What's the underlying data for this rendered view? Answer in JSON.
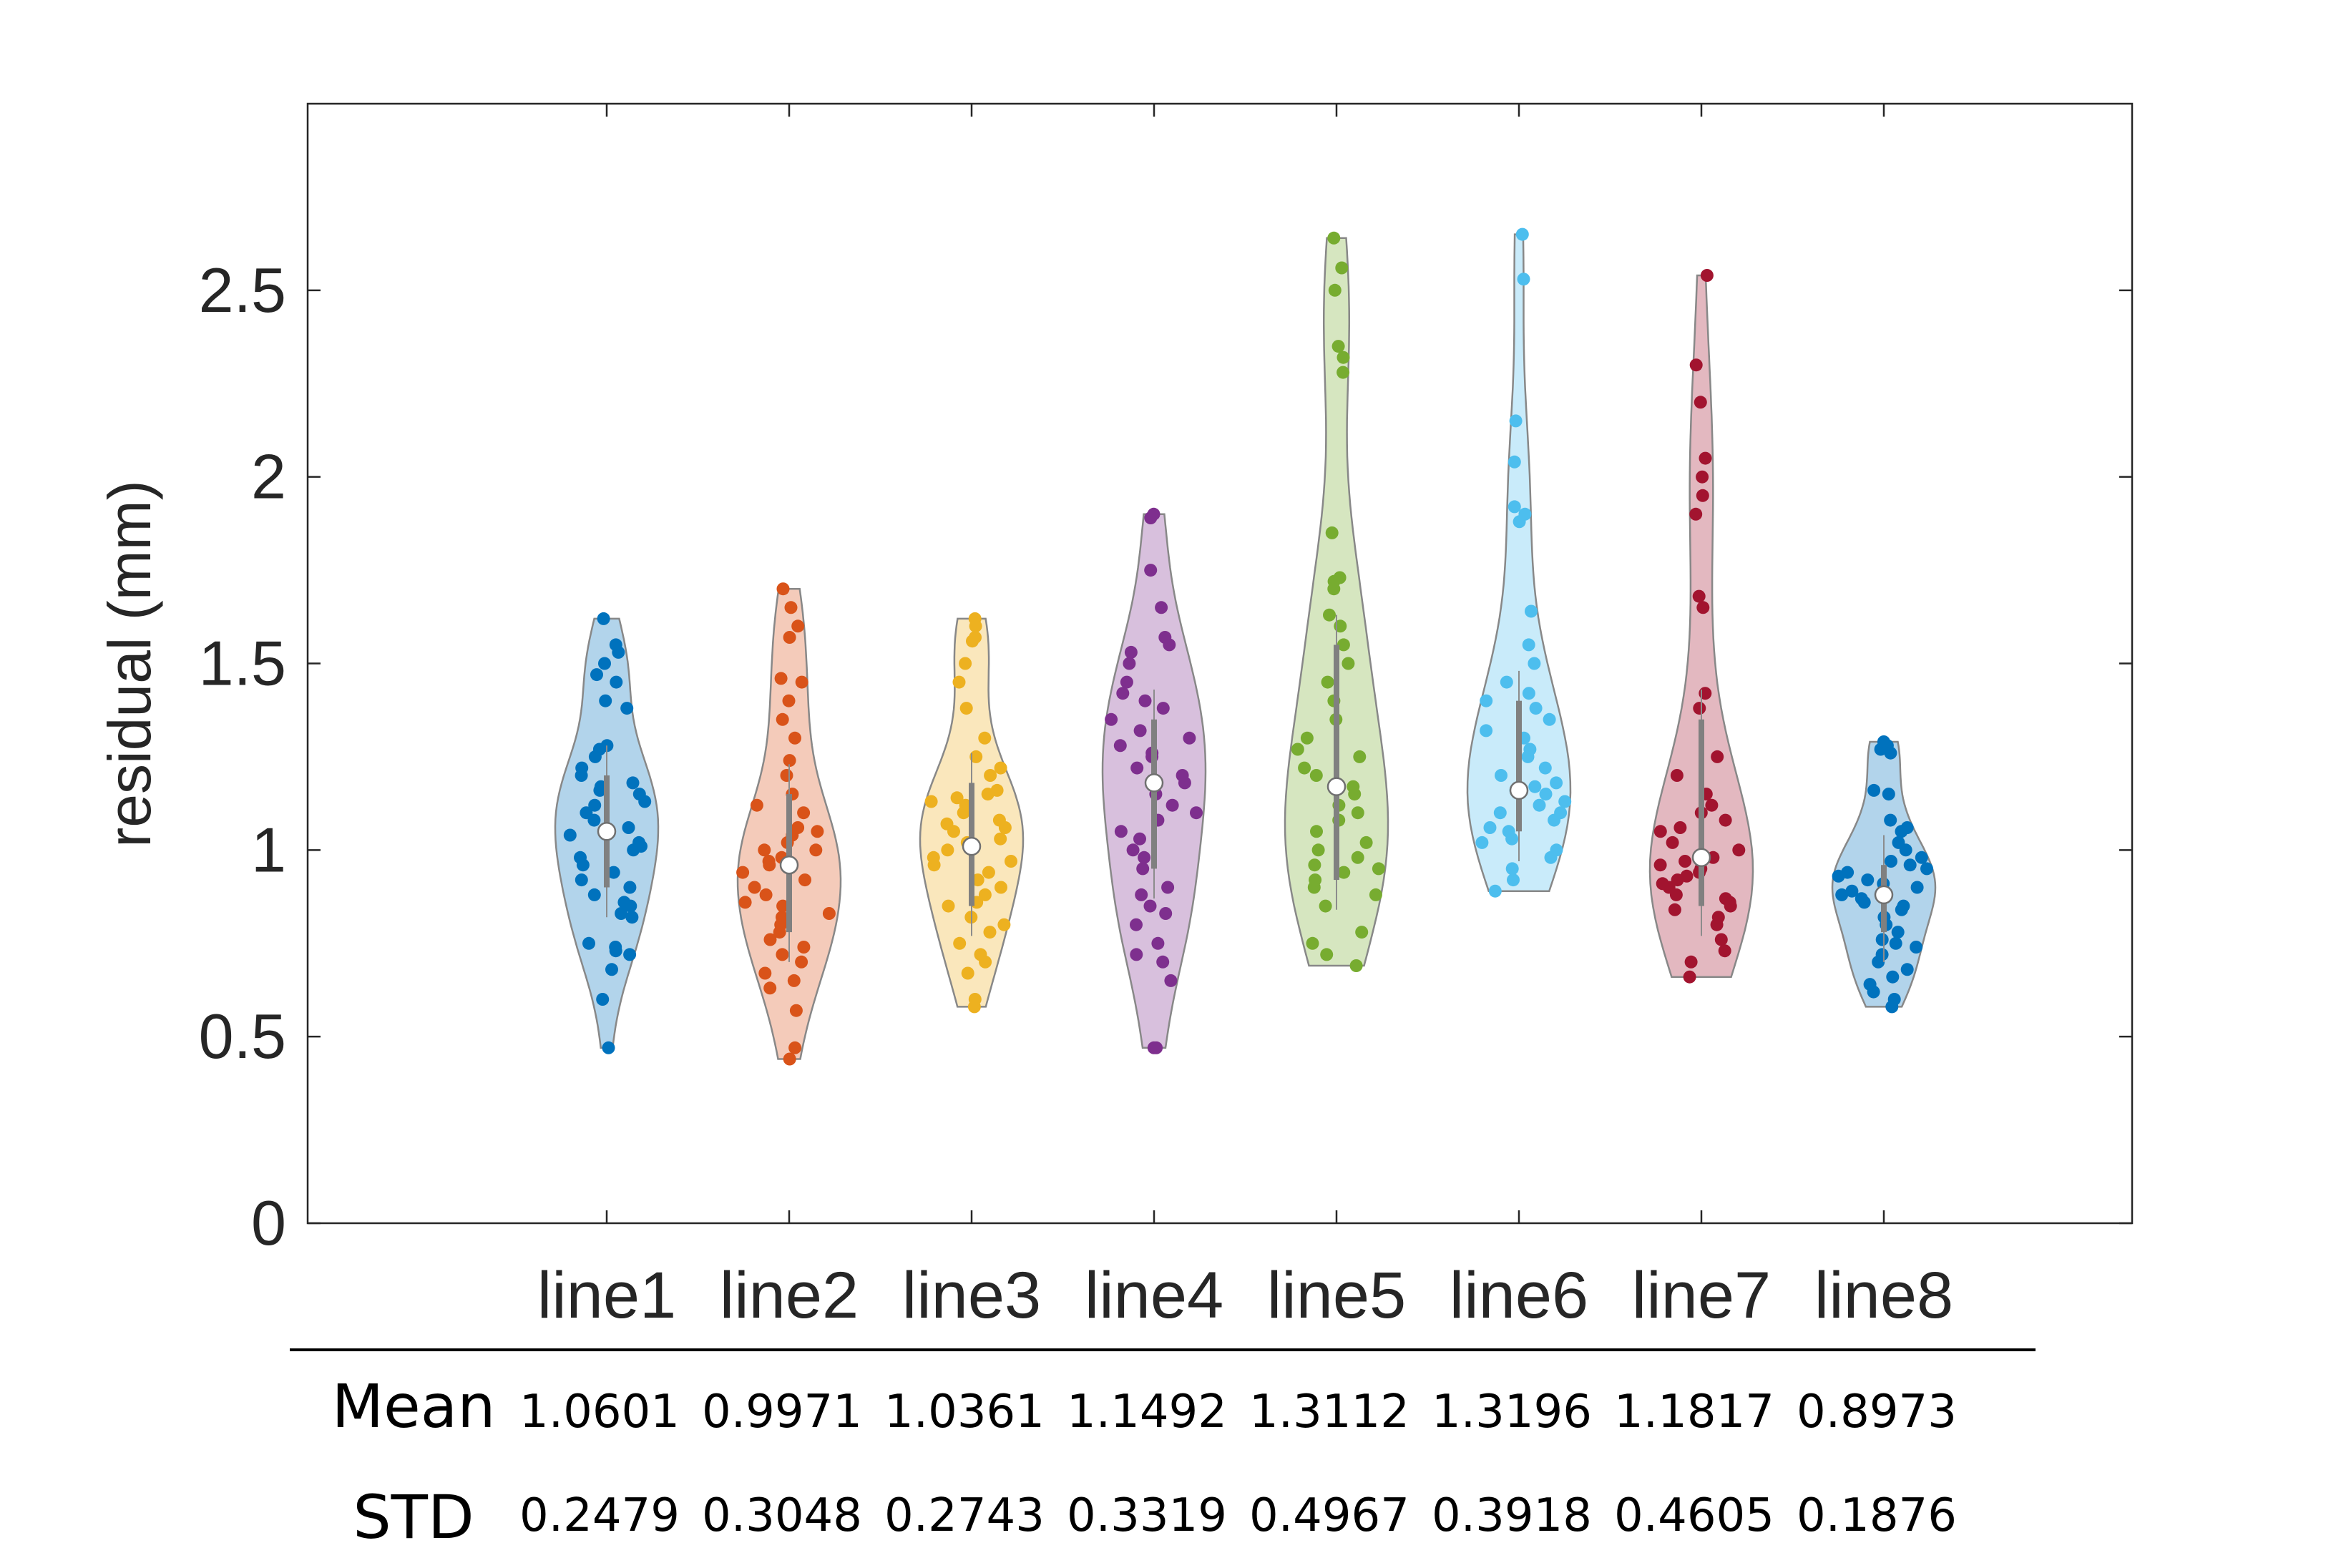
{
  "chart_data": {
    "type": "violin",
    "ylabel": "residual (mm)",
    "ylim": [
      0,
      3
    ],
    "yticks": [
      0,
      0.5,
      1,
      1.5,
      2,
      2.5
    ],
    "ytick_labels": [
      "0",
      "0.5",
      "1",
      "1.5",
      "2",
      "2.5"
    ],
    "categories": [
      "line1",
      "line2",
      "line3",
      "line4",
      "line5",
      "line6",
      "line7",
      "line8"
    ],
    "grid": false,
    "series": [
      {
        "color": "#0072BD",
        "min": 0.47,
        "max": 1.62,
        "median": 1.05,
        "q1": 0.9,
        "q3": 1.2,
        "points": [
          0.47,
          0.6,
          0.68,
          0.72,
          0.73,
          0.74,
          0.75,
          0.82,
          0.83,
          0.85,
          0.86,
          0.88,
          0.9,
          0.92,
          0.94,
          0.96,
          0.98,
          1.0,
          1.01,
          1.02,
          1.04,
          1.05,
          1.06,
          1.08,
          1.1,
          1.12,
          1.13,
          1.15,
          1.16,
          1.17,
          1.18,
          1.2,
          1.22,
          1.25,
          1.27,
          1.28,
          1.38,
          1.4,
          1.45,
          1.47,
          1.5,
          1.53,
          1.55,
          1.62
        ]
      },
      {
        "color": "#D95319",
        "min": 0.44,
        "max": 1.7,
        "median": 0.96,
        "q1": 0.78,
        "q3": 1.15,
        "points": [
          0.44,
          0.47,
          0.57,
          0.63,
          0.65,
          0.67,
          0.7,
          0.72,
          0.74,
          0.76,
          0.78,
          0.8,
          0.82,
          0.83,
          0.85,
          0.86,
          0.88,
          0.9,
          0.92,
          0.94,
          0.96,
          0.97,
          0.98,
          1.0,
          1.0,
          1.02,
          1.04,
          1.05,
          1.06,
          1.1,
          1.12,
          1.15,
          1.2,
          1.24,
          1.3,
          1.35,
          1.4,
          1.45,
          1.46,
          1.57,
          1.6,
          1.65,
          1.7
        ]
      },
      {
        "color": "#EDB120",
        "min": 0.58,
        "max": 1.62,
        "median": 1.01,
        "q1": 0.85,
        "q3": 1.18,
        "points": [
          0.58,
          0.6,
          0.67,
          0.7,
          0.72,
          0.75,
          0.78,
          0.8,
          0.82,
          0.85,
          0.86,
          0.88,
          0.9,
          0.92,
          0.94,
          0.96,
          0.97,
          0.98,
          1.0,
          1.02,
          1.03,
          1.05,
          1.06,
          1.07,
          1.08,
          1.1,
          1.12,
          1.13,
          1.14,
          1.15,
          1.16,
          1.2,
          1.22,
          1.25,
          1.3,
          1.38,
          1.45,
          1.5,
          1.56,
          1.57,
          1.6,
          1.62
        ]
      },
      {
        "color": "#7E2F8E",
        "min": 0.47,
        "max": 1.9,
        "median": 1.18,
        "q1": 0.95,
        "q3": 1.35,
        "points": [
          0.47,
          0.47,
          0.65,
          0.7,
          0.72,
          0.75,
          0.8,
          0.83,
          0.85,
          0.88,
          0.9,
          0.95,
          0.98,
          1.0,
          1.03,
          1.05,
          1.08,
          1.1,
          1.12,
          1.15,
          1.18,
          1.2,
          1.22,
          1.25,
          1.26,
          1.28,
          1.3,
          1.32,
          1.35,
          1.38,
          1.4,
          1.42,
          1.45,
          1.5,
          1.53,
          1.55,
          1.57,
          1.65,
          1.75,
          1.89,
          1.9
        ]
      },
      {
        "color": "#77AC30",
        "min": 0.69,
        "max": 2.64,
        "median": 1.17,
        "q1": 0.92,
        "q3": 1.55,
        "points": [
          0.69,
          0.72,
          0.75,
          0.78,
          0.85,
          0.88,
          0.9,
          0.92,
          0.94,
          0.95,
          0.96,
          0.98,
          1.0,
          1.02,
          1.05,
          1.08,
          1.1,
          1.12,
          1.15,
          1.17,
          1.2,
          1.22,
          1.25,
          1.27,
          1.3,
          1.35,
          1.4,
          1.45,
          1.5,
          1.55,
          1.6,
          1.63,
          1.7,
          1.72,
          1.73,
          1.85,
          2.28,
          2.32,
          2.35,
          2.5,
          2.56,
          2.64
        ]
      },
      {
        "color": "#4DBEEE",
        "min": 0.89,
        "max": 2.65,
        "median": 1.16,
        "q1": 1.05,
        "q3": 1.4,
        "points": [
          0.89,
          0.92,
          0.95,
          0.98,
          1.0,
          1.02,
          1.03,
          1.05,
          1.06,
          1.08,
          1.1,
          1.1,
          1.12,
          1.13,
          1.15,
          1.16,
          1.17,
          1.18,
          1.2,
          1.22,
          1.25,
          1.27,
          1.3,
          1.32,
          1.35,
          1.38,
          1.4,
          1.42,
          1.45,
          1.5,
          1.55,
          1.64,
          1.88,
          1.9,
          1.92,
          2.04,
          2.15,
          2.53,
          2.65
        ]
      },
      {
        "color": "#A2142F",
        "min": 0.66,
        "max": 2.54,
        "median": 0.98,
        "q1": 0.85,
        "q3": 1.35,
        "points": [
          0.66,
          0.7,
          0.73,
          0.76,
          0.8,
          0.82,
          0.84,
          0.85,
          0.86,
          0.87,
          0.88,
          0.9,
          0.91,
          0.92,
          0.93,
          0.94,
          0.95,
          0.96,
          0.97,
          0.98,
          1.0,
          1.02,
          1.05,
          1.06,
          1.08,
          1.1,
          1.12,
          1.15,
          1.2,
          1.25,
          1.38,
          1.42,
          1.65,
          1.68,
          1.9,
          1.95,
          2.0,
          2.05,
          2.2,
          2.3,
          2.54
        ]
      },
      {
        "color": "#0072BD",
        "min": 0.58,
        "max": 1.29,
        "median": 0.88,
        "q1": 0.78,
        "q3": 0.96,
        "points": [
          0.58,
          0.6,
          0.62,
          0.64,
          0.66,
          0.68,
          0.7,
          0.72,
          0.74,
          0.75,
          0.76,
          0.78,
          0.8,
          0.82,
          0.84,
          0.85,
          0.86,
          0.87,
          0.88,
          0.89,
          0.9,
          0.91,
          0.92,
          0.93,
          0.94,
          0.95,
          0.96,
          0.97,
          0.98,
          1.0,
          1.02,
          1.05,
          1.06,
          1.08,
          1.15,
          1.16,
          1.26,
          1.27,
          1.28,
          1.29
        ]
      }
    ]
  },
  "stats_table": {
    "mean_label": "Mean",
    "std_label": "STD",
    "mean": [
      "1.0601",
      "0.9971",
      "1.0361",
      "1.1492",
      "1.3112",
      "1.3196",
      "1.1817",
      "0.8973"
    ],
    "std": [
      "0.2479",
      "0.3048",
      "0.2743",
      "0.3319",
      "0.4967",
      "0.3918",
      "0.4605",
      "0.1876"
    ]
  }
}
